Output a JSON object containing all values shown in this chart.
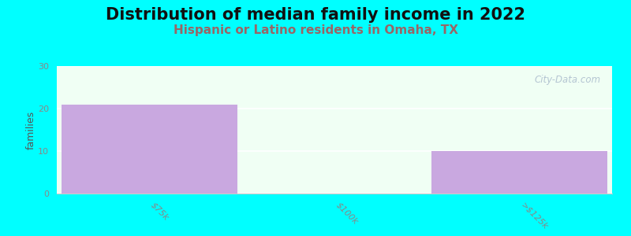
{
  "title": "Distribution of median family income in 2022",
  "subtitle": "Hispanic or Latino residents in Omaha, TX",
  "ylabel": "families",
  "categories": [
    "$75k",
    "$100k",
    ">$125k"
  ],
  "values": [
    21,
    0,
    10
  ],
  "bar_color": "#c9a8e0",
  "bg_color": "#00ffff",
  "plot_bg_color": "#f0fff4",
  "ylim": [
    0,
    30
  ],
  "yticks": [
    0,
    10,
    20,
    30
  ],
  "watermark": "City-Data.com",
  "title_fontsize": 15,
  "subtitle_fontsize": 11,
  "ylabel_fontsize": 9,
  "tick_fontsize": 8,
  "bar_width": 0.95,
  "title_color": "#111111",
  "subtitle_color": "#996666",
  "tick_color": "#888888",
  "ylabel_color": "#555555"
}
